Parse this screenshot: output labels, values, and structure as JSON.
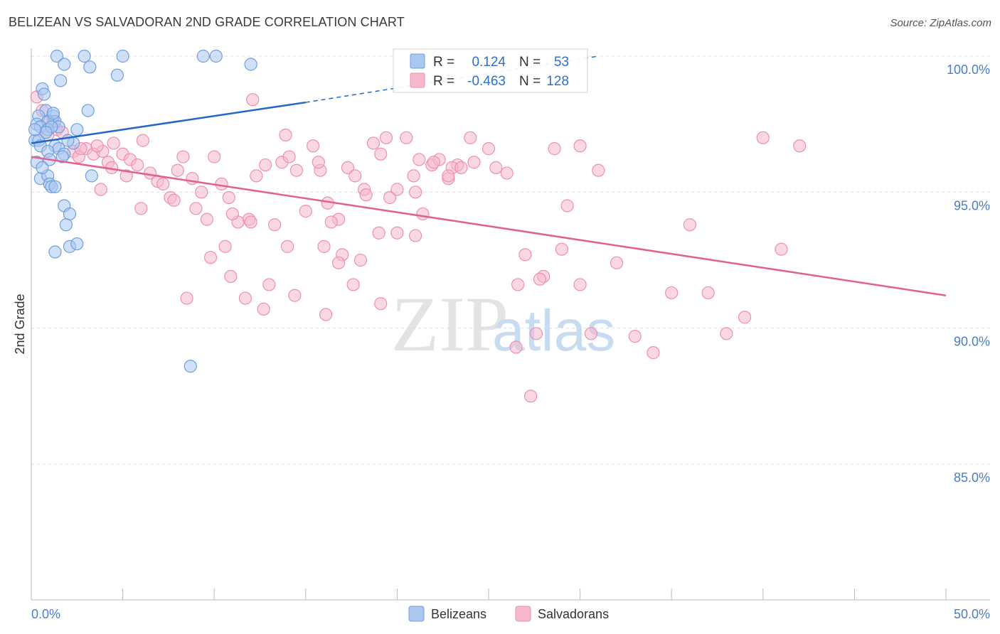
{
  "title": "BELIZEAN VS SALVADORAN 2ND GRADE CORRELATION CHART",
  "source": "Source: ZipAtlas.com",
  "watermark": {
    "zip": "ZIP",
    "atlas": "atlas"
  },
  "colors": {
    "blue_fill": "#a9c7f0",
    "blue_stroke": "#6f9fe0",
    "blue_line": "#2166c8",
    "pink_fill": "#f6b8cc",
    "pink_stroke": "#ee8fb0",
    "pink_line": "#e2608f",
    "label_blue": "#4a7cc9",
    "grid": "#dddddd"
  },
  "legend": {
    "rows": [
      {
        "r_label": "R =",
        "r_value": "0.124",
        "n_label": "N =",
        "n_value": "53"
      },
      {
        "r_label": "R =",
        "r_value": "-0.463",
        "n_label": "N =",
        "n_value": "128"
      }
    ]
  },
  "chart_data": {
    "type": "scatter",
    "title": "BELIZEAN VS SALVADORAN 2ND GRADE CORRELATION CHART",
    "xlabel": "",
    "ylabel": "2nd Grade",
    "xlim": [
      0,
      50
    ],
    "ylim": [
      80.5,
      100.5
    ],
    "x_tick_labels": [
      "0.0%",
      "50.0%"
    ],
    "y_ticks": [
      85,
      90,
      95,
      100
    ],
    "y_tick_labels": [
      "85.0%",
      "90.0%",
      "95.0%",
      "100.0%"
    ],
    "grid": true,
    "legend_position": "bottom",
    "series": [
      {
        "name": "Belizeans",
        "r": 0.124,
        "n": 53,
        "trend": {
          "x0": 0,
          "y0": 96.8,
          "x1": 15,
          "y1": 98.3,
          "dash_to_x": 31,
          "dash_to_y": 100.0
        },
        "points": [
          [
            1.4,
            100.0
          ],
          [
            2.9,
            100.0
          ],
          [
            5.0,
            100.0
          ],
          [
            9.4,
            100.0
          ],
          [
            10.1,
            100.0
          ],
          [
            1.8,
            99.7
          ],
          [
            3.2,
            99.6
          ],
          [
            12.0,
            99.7
          ],
          [
            4.7,
            99.3
          ],
          [
            1.6,
            99.1
          ],
          [
            0.6,
            98.8
          ],
          [
            0.7,
            98.6
          ],
          [
            3.1,
            98.0
          ],
          [
            0.8,
            98.0
          ],
          [
            0.4,
            97.8
          ],
          [
            1.2,
            97.8
          ],
          [
            1.3,
            97.6
          ],
          [
            0.3,
            97.5
          ],
          [
            0.9,
            97.6
          ],
          [
            1.5,
            97.4
          ],
          [
            0.5,
            97.4
          ],
          [
            0.9,
            97.3
          ],
          [
            2.5,
            97.3
          ],
          [
            1.1,
            97.4
          ],
          [
            0.2,
            96.9
          ],
          [
            0.4,
            96.9
          ],
          [
            0.5,
            96.7
          ],
          [
            1.3,
            96.7
          ],
          [
            2.3,
            96.8
          ],
          [
            1.5,
            96.6
          ],
          [
            0.9,
            96.5
          ],
          [
            1.8,
            96.4
          ],
          [
            0.3,
            96.1
          ],
          [
            1.0,
            96.2
          ],
          [
            0.5,
            95.5
          ],
          [
            0.9,
            95.6
          ],
          [
            3.3,
            95.6
          ],
          [
            1.0,
            95.3
          ],
          [
            1.1,
            95.2
          ],
          [
            1.3,
            95.2
          ],
          [
            1.8,
            94.5
          ],
          [
            2.1,
            94.2
          ],
          [
            1.9,
            93.8
          ],
          [
            2.1,
            93.0
          ],
          [
            2.5,
            93.1
          ],
          [
            1.3,
            92.8
          ],
          [
            8.7,
            88.6
          ],
          [
            1.2,
            97.9
          ],
          [
            0.8,
            97.2
          ],
          [
            1.7,
            96.3
          ],
          [
            0.2,
            97.3
          ],
          [
            2.0,
            96.9
          ],
          [
            0.6,
            95.9
          ]
        ]
      },
      {
        "name": "Salvadorans",
        "r": -0.463,
        "n": 128,
        "trend": {
          "x0": 0,
          "y0": 96.3,
          "x1": 50,
          "y1": 91.2
        },
        "points": [
          [
            0.3,
            98.5
          ],
          [
            0.6,
            98.0
          ],
          [
            1.0,
            97.6
          ],
          [
            1.4,
            97.3
          ],
          [
            0.9,
            97.1
          ],
          [
            1.7,
            97.2
          ],
          [
            1.2,
            97.6
          ],
          [
            2.3,
            96.5
          ],
          [
            2.6,
            96.3
          ],
          [
            3.0,
            96.6
          ],
          [
            3.4,
            96.4
          ],
          [
            3.9,
            96.5
          ],
          [
            4.2,
            96.1
          ],
          [
            4.5,
            96.8
          ],
          [
            5.0,
            96.4
          ],
          [
            5.4,
            96.2
          ],
          [
            5.8,
            96.0
          ],
          [
            6.1,
            96.9
          ],
          [
            6.5,
            95.7
          ],
          [
            6.9,
            95.4
          ],
          [
            3.6,
            96.7
          ],
          [
            2.7,
            96.6
          ],
          [
            4.4,
            95.9
          ],
          [
            5.2,
            95.6
          ],
          [
            3.8,
            95.1
          ],
          [
            6.0,
            94.4
          ],
          [
            7.2,
            95.3
          ],
          [
            7.6,
            94.8
          ],
          [
            8.0,
            95.8
          ],
          [
            8.3,
            96.3
          ],
          [
            8.8,
            95.5
          ],
          [
            9.3,
            95.0
          ],
          [
            9.6,
            94.0
          ],
          [
            10.0,
            96.3
          ],
          [
            10.4,
            95.3
          ],
          [
            10.8,
            94.8
          ],
          [
            11.3,
            93.9
          ],
          [
            11.9,
            94.0
          ],
          [
            12.3,
            95.6
          ],
          [
            12.8,
            96.0
          ],
          [
            13.3,
            93.8
          ],
          [
            13.7,
            96.1
          ],
          [
            14.1,
            96.3
          ],
          [
            14.5,
            95.8
          ],
          [
            15.0,
            94.3
          ],
          [
            15.4,
            96.7
          ],
          [
            15.8,
            95.8
          ],
          [
            16.2,
            94.6
          ],
          [
            16.8,
            94.0
          ],
          [
            17.3,
            95.9
          ],
          [
            17.7,
            95.6
          ],
          [
            18.2,
            95.1
          ],
          [
            18.7,
            96.8
          ],
          [
            19.1,
            96.4
          ],
          [
            19.6,
            94.8
          ],
          [
            20.0,
            95.1
          ],
          [
            20.5,
            97.0
          ],
          [
            20.9,
            95.6
          ],
          [
            21.4,
            94.2
          ],
          [
            21.9,
            96.0
          ],
          [
            22.3,
            96.2
          ],
          [
            22.8,
            95.5
          ],
          [
            23.3,
            96.0
          ],
          [
            7.8,
            94.7
          ],
          [
            9.0,
            94.4
          ],
          [
            11.0,
            94.2
          ],
          [
            12.0,
            93.9
          ],
          [
            14.0,
            93.0
          ],
          [
            16.0,
            93.0
          ],
          [
            17.0,
            92.7
          ],
          [
            18.0,
            92.5
          ],
          [
            19.0,
            93.5
          ],
          [
            20.0,
            93.5
          ],
          [
            21.0,
            93.4
          ],
          [
            22.0,
            96.1
          ],
          [
            23.0,
            95.9
          ],
          [
            24.0,
            97.0
          ],
          [
            25.0,
            96.6
          ],
          [
            26.0,
            95.7
          ],
          [
            27.0,
            92.7
          ],
          [
            28.0,
            91.9
          ],
          [
            29.0,
            92.9
          ],
          [
            30.0,
            91.6
          ],
          [
            31.0,
            95.8
          ],
          [
            32.0,
            92.4
          ],
          [
            33.0,
            89.7
          ],
          [
            34.0,
            89.1
          ],
          [
            35.0,
            91.3
          ],
          [
            36.0,
            93.8
          ],
          [
            37.0,
            91.3
          ],
          [
            38.0,
            89.8
          ],
          [
            39.0,
            90.4
          ],
          [
            40.0,
            97.0
          ],
          [
            41.0,
            92.9
          ],
          [
            42.0,
            96.7
          ],
          [
            26.5,
            89.3
          ],
          [
            27.3,
            87.5
          ],
          [
            27.6,
            89.8
          ],
          [
            30.6,
            89.8
          ],
          [
            30.0,
            96.7
          ],
          [
            28.6,
            96.6
          ],
          [
            29.3,
            94.5
          ],
          [
            24.2,
            96.1
          ],
          [
            23.5,
            95.9
          ],
          [
            25.4,
            95.9
          ],
          [
            19.4,
            97.0
          ],
          [
            21.2,
            96.2
          ],
          [
            16.8,
            92.4
          ],
          [
            17.6,
            91.6
          ],
          [
            14.4,
            91.2
          ],
          [
            13.0,
            91.6
          ],
          [
            11.7,
            91.1
          ],
          [
            10.9,
            91.9
          ],
          [
            10.6,
            93.0
          ],
          [
            8.5,
            91.1
          ],
          [
            13.9,
            97.1
          ],
          [
            12.1,
            98.4
          ],
          [
            15.7,
            96.1
          ],
          [
            18.3,
            94.9
          ],
          [
            16.4,
            93.9
          ],
          [
            12.7,
            90.7
          ],
          [
            16.1,
            90.5
          ],
          [
            19.1,
            90.9
          ],
          [
            27.8,
            91.8
          ],
          [
            26.6,
            91.6
          ],
          [
            22.8,
            95.6
          ],
          [
            21.0,
            95.0
          ],
          [
            9.8,
            92.6
          ]
        ]
      }
    ]
  },
  "bottom_legend": [
    "Belizeans",
    "Salvadorans"
  ]
}
